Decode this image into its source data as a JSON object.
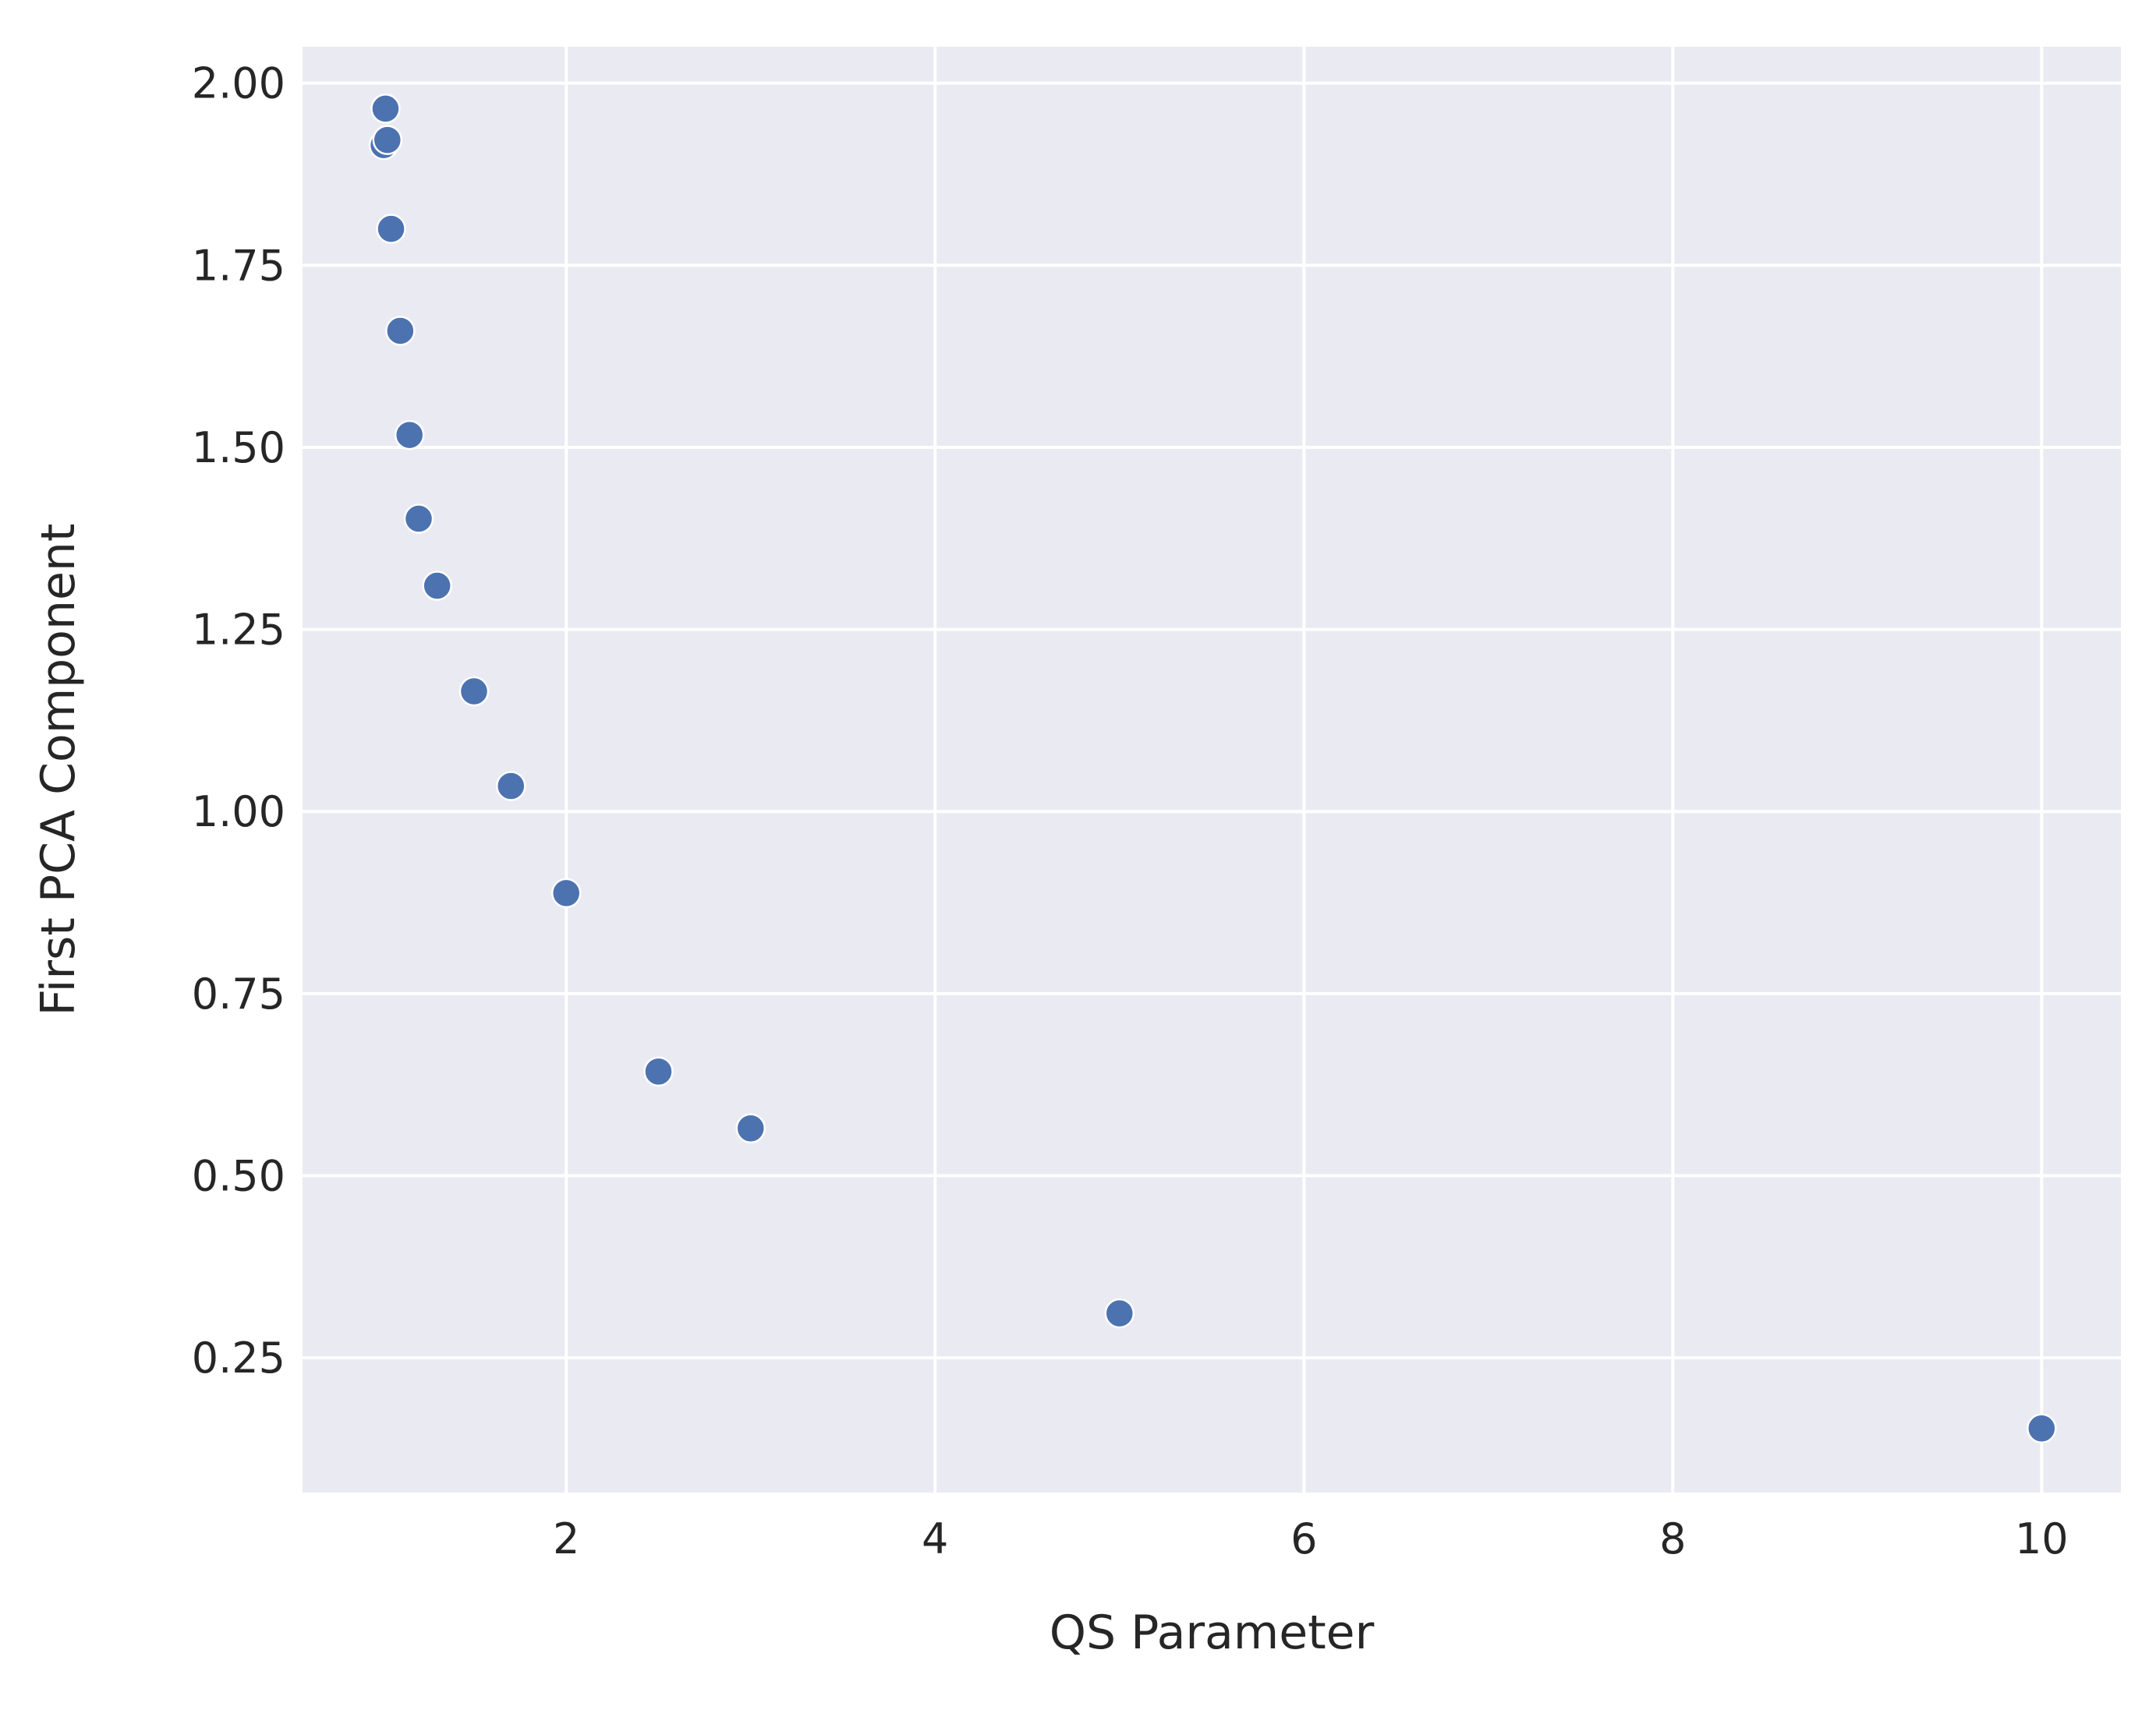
{
  "chart_data": {
    "type": "scatter",
    "title": "",
    "xlabel": "QS Parameter",
    "ylabel": "First PCA Component",
    "xlim": [
      0.57,
      10.43
    ],
    "ylim": [
      0.065,
      2.05
    ],
    "xticks": [
      2,
      4,
      6,
      8,
      10
    ],
    "xtick_labels": [
      "2",
      "4",
      "6",
      "8",
      "10"
    ],
    "yticks": [
      0.25,
      0.5,
      0.75,
      1.0,
      1.25,
      1.5,
      1.75,
      2.0
    ],
    "ytick_labels": [
      "0.25",
      "0.50",
      "0.75",
      "1.00",
      "1.25",
      "1.50",
      "1.75",
      "2.00"
    ],
    "grid": true,
    "legend": false,
    "series": [
      {
        "x": [
          1.01,
          1.02,
          1.03,
          1.05,
          1.1,
          1.15,
          1.2,
          1.3,
          1.5,
          1.7,
          2.0,
          2.5,
          3.0,
          5.0,
          10.0
        ],
        "y": [
          1.915,
          1.965,
          1.922,
          1.8,
          1.66,
          1.517,
          1.402,
          1.31,
          1.165,
          1.035,
          0.888,
          0.643,
          0.565,
          0.311,
          0.153
        ]
      }
    ],
    "colors": {
      "plot_background": "#eaeaf2",
      "grid": "#ffffff",
      "point_fill": "#4c72b0",
      "point_edge": "#ffffff",
      "text": "#262626"
    }
  }
}
